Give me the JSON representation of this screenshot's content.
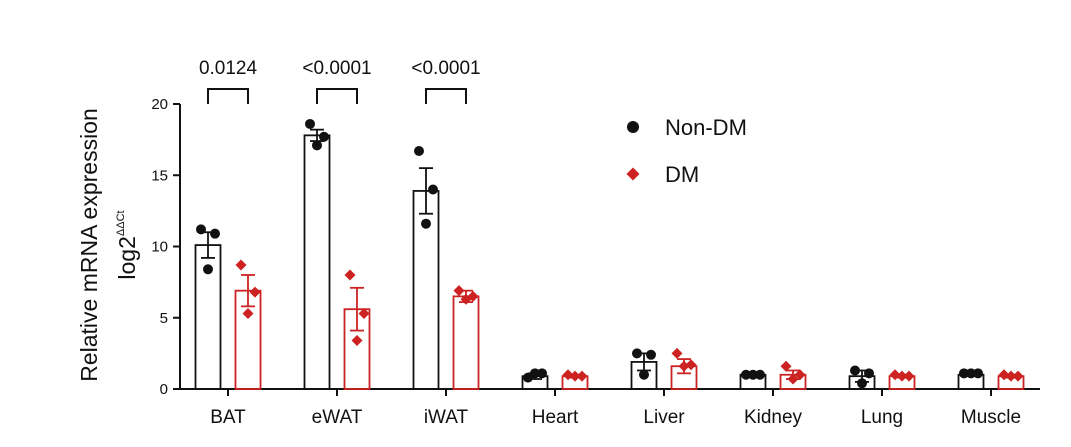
{
  "chart_data": {
    "type": "bar",
    "ylabel_line1": "Relative mRNA expression",
    "ylabel_line2_base": "log2",
    "ylabel_line2_sup": "ΔΔCt",
    "ylim": [
      0,
      20
    ],
    "yticks": [
      "0",
      "5",
      "10",
      "15",
      "20"
    ],
    "ytick_values": [
      0,
      5,
      10,
      15,
      20
    ],
    "categories": [
      "BAT",
      "eWAT",
      "iWAT",
      "Heart",
      "Liver",
      "Kidney",
      "Lung",
      "Muscle"
    ],
    "series": [
      {
        "name": "Non-DM",
        "color": "#111111",
        "marker": "circle",
        "values": [
          10.1,
          17.8,
          13.9,
          0.9,
          1.9,
          1.0,
          0.9,
          1.0
        ],
        "errors": [
          0.9,
          0.4,
          1.6,
          0.2,
          0.6,
          0.1,
          0.4,
          0.1
        ],
        "points": [
          [
            11.2,
            10.9,
            8.4
          ],
          [
            18.6,
            17.7,
            17.1
          ],
          [
            16.7,
            14.0,
            11.6
          ],
          [
            0.8,
            1.1,
            1.1
          ],
          [
            2.5,
            2.4,
            1.0
          ],
          [
            1.0,
            1.0,
            1.0
          ],
          [
            1.3,
            1.1,
            0.4
          ],
          [
            1.1,
            1.1,
            1.1
          ]
        ]
      },
      {
        "name": "DM",
        "color": "#cc2222",
        "marker": "diamond",
        "values": [
          6.9,
          5.6,
          6.5,
          0.9,
          1.6,
          1.0,
          0.9,
          0.9
        ],
        "errors": [
          1.1,
          1.5,
          0.4,
          0.1,
          0.5,
          0.3,
          0.1,
          0.1
        ],
        "points": [
          [
            8.7,
            6.8,
            5.3
          ],
          [
            8.0,
            5.3,
            3.4
          ],
          [
            6.9,
            6.5,
            6.3
          ],
          [
            1.0,
            0.9,
            0.9
          ],
          [
            2.5,
            1.7,
            1.6
          ],
          [
            1.6,
            1.0,
            0.7
          ],
          [
            1.0,
            0.9,
            0.9
          ],
          [
            1.0,
            0.9,
            0.9
          ]
        ]
      }
    ],
    "comparisons": [
      {
        "category": "BAT",
        "label": "0.0124"
      },
      {
        "category": "eWAT",
        "label": "<0.0001"
      },
      {
        "category": "iWAT",
        "label": "<0.0001"
      }
    ],
    "legend_placement": "top-right",
    "grid": false
  }
}
